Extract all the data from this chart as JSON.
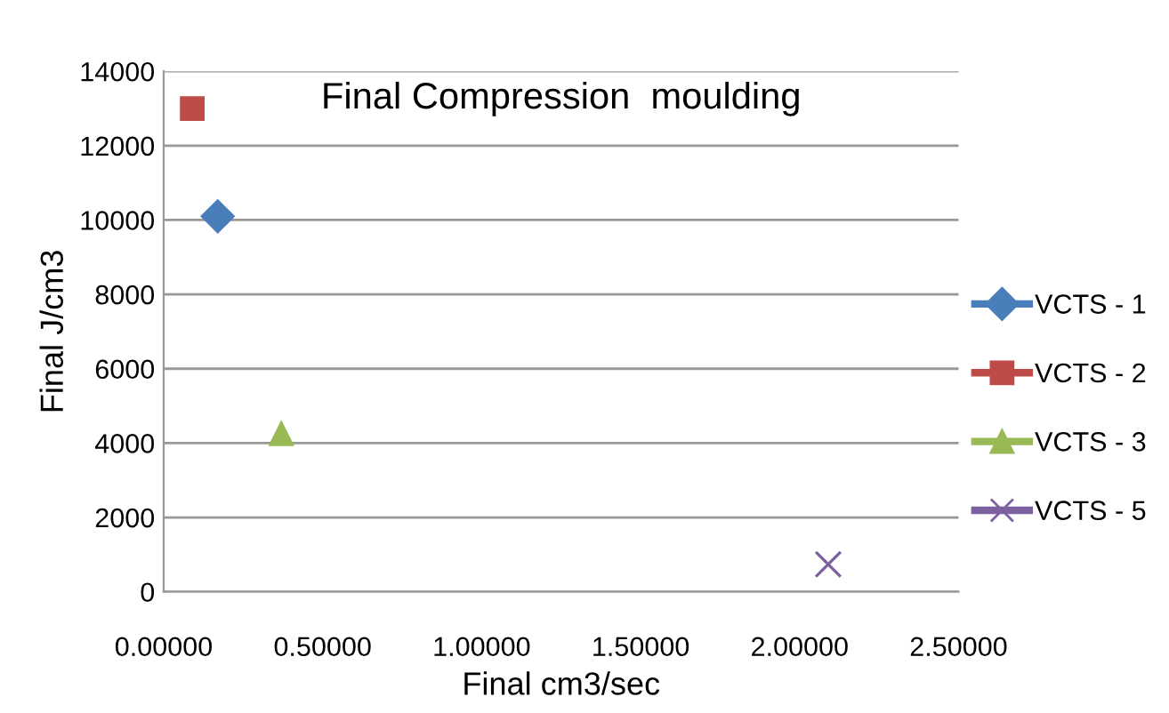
{
  "chart_data": {
    "type": "line",
    "title": "Final Compression  moulding",
    "xlabel": "Final cm3/sec",
    "ylabel": "Final J/cm3",
    "series": [
      {
        "name": "VCTS - 1",
        "color": "#4a7ebb",
        "marker": "diamond",
        "x": [
          0.17
        ],
        "values": [
          10100
        ]
      },
      {
        "name": "VCTS - 2",
        "color": "#be4b48",
        "marker": "square",
        "x": [
          0.09
        ],
        "values": [
          13000
        ]
      },
      {
        "name": "VCTS - 3",
        "color": "#98b954",
        "marker": "triangle",
        "x": [
          0.37
        ],
        "values": [
          4250
        ]
      },
      {
        "name": "VCTS - 5",
        "color": "#7d60a0",
        "marker": "cross",
        "x": [
          2.09
        ],
        "values": [
          740
        ]
      }
    ],
    "xlim": [
      0,
      2.5
    ],
    "xticks": [
      {
        "value": 0,
        "label": "0.00000"
      },
      {
        "value": 0.5,
        "label": "0.50000"
      },
      {
        "value": 1,
        "label": "1.00000"
      },
      {
        "value": 1.5,
        "label": "1.50000"
      },
      {
        "value": 2,
        "label": "2.00000"
      },
      {
        "value": 2.5,
        "label": "2.50000"
      }
    ],
    "ylim": [
      0,
      14000
    ],
    "yticks": [
      0,
      2000,
      4000,
      6000,
      8000,
      10000,
      12000,
      14000
    ],
    "grid": "y",
    "legend": "right"
  }
}
